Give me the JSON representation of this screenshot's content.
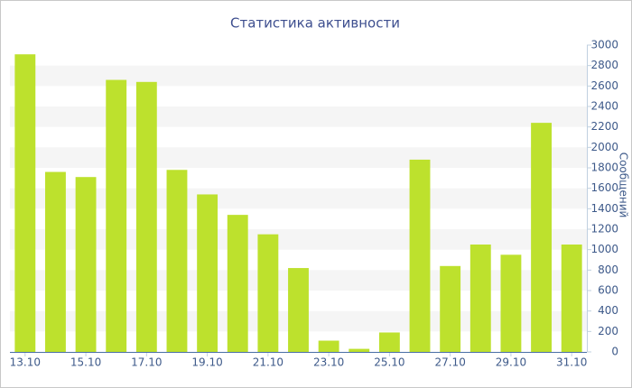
{
  "chart_data": {
    "type": "bar",
    "title": "Статистика активности",
    "y_label": "Сообщений",
    "categories": [
      "13.10",
      null,
      "15.10",
      null,
      "17.10",
      null,
      "19.10",
      null,
      "21.10",
      null,
      "23.10",
      null,
      "25.10",
      null,
      "27.10",
      null,
      "29.10",
      null,
      "31.10"
    ],
    "values": [
      2910,
      1760,
      1710,
      2660,
      2640,
      1780,
      1540,
      1340,
      1150,
      820,
      110,
      30,
      190,
      1880,
      840,
      1050,
      950,
      2240,
      1050
    ],
    "color": "#bde12d",
    "ylim": [
      0,
      3000
    ],
    "yticks": [
      0,
      200,
      400,
      600,
      800,
      1000,
      1200,
      1400,
      1600,
      1800,
      2000,
      2200,
      2400,
      2600,
      2800,
      3000
    ],
    "grid": true
  }
}
